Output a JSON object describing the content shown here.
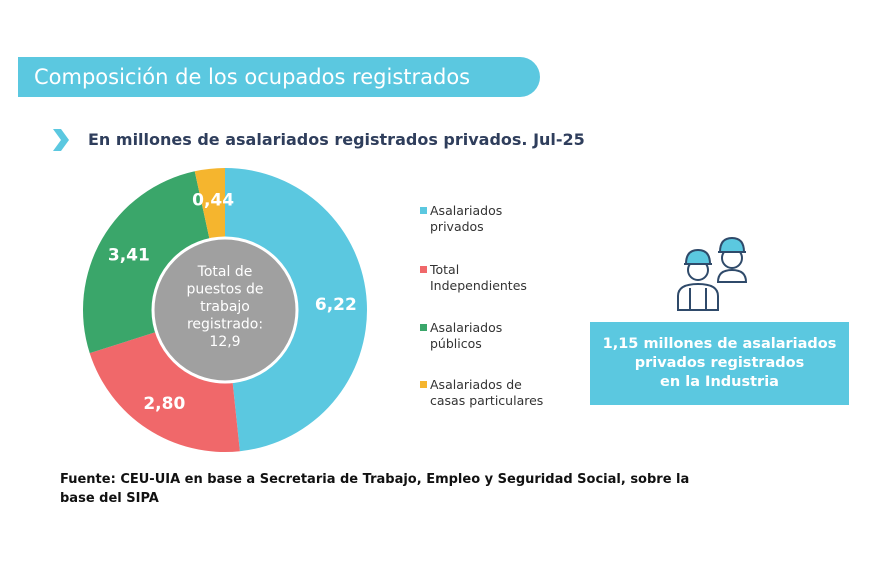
{
  "header": {
    "title": "Composición de los ocupados registrados"
  },
  "chart_data": {
    "type": "pie",
    "title": "",
    "subtitle": "En millones de asalariados registrados privados. Jul-25",
    "categories": [
      "Asalariados privados",
      "Total Independientes",
      "Asalariados públicos",
      "Asalariados de casas particulares"
    ],
    "values": [
      6.22,
      2.8,
      3.41,
      0.44
    ],
    "labels": [
      "6,22",
      "2,80",
      "3,41",
      "0,44"
    ],
    "colors": [
      "#5bc8e0",
      "#f0686a",
      "#3aa66a",
      "#f5b52e"
    ],
    "center_label": [
      "Total de",
      "puestos de",
      "trabajo",
      "registrado:",
      "12,9"
    ],
    "center_color": "#a0a0a0",
    "legend_placement": "right",
    "legend": [
      [
        "Asalariados",
        "privados"
      ],
      [
        "Total",
        "Independientes"
      ],
      [
        "Asalariados",
        "públicos"
      ],
      [
        "Asalariados de",
        "casas particulares"
      ]
    ]
  },
  "callout": {
    "text": [
      "1,15 millones de asalariados",
      "privados registrados",
      "en la Industria"
    ],
    "icon": "workers-hardhat-icon"
  },
  "source": "Fuente: CEU-UIA en base a Secretaria de Trabajo, Empleo y Seguridad Social, sobre la base del SIPA"
}
